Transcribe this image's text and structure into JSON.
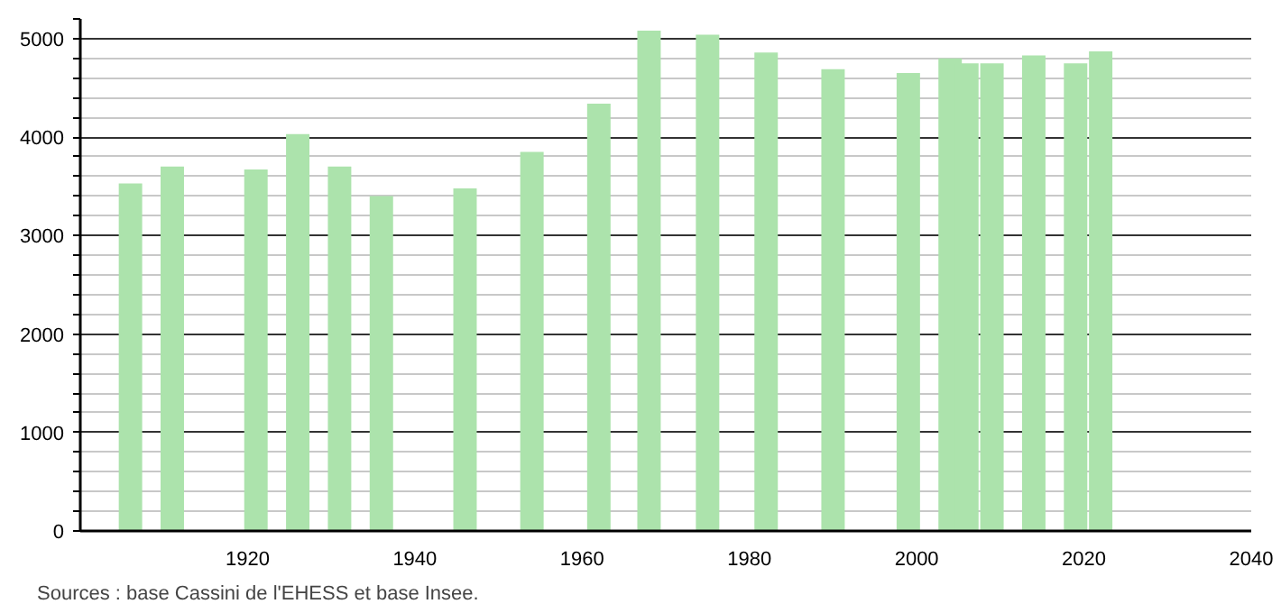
{
  "chart_data": {
    "type": "bar",
    "x": [
      1906,
      1911,
      1921,
      1926,
      1931,
      1936,
      1946,
      1954,
      1962,
      1968,
      1975,
      1982,
      1990,
      1999,
      2004,
      2006,
      2009,
      2014,
      2019,
      2022
    ],
    "values": [
      3530,
      3700,
      3670,
      4030,
      3700,
      3400,
      3480,
      3850,
      4340,
      5080,
      5040,
      4860,
      4690,
      4650,
      4800,
      4750,
      4750,
      4830,
      4750,
      4870
    ],
    "color": "#ace3ac",
    "xlim": [
      1900,
      2040
    ],
    "xticks": [
      1920,
      1940,
      1960,
      1980,
      2000,
      2020,
      2040
    ],
    "ylim": [
      0,
      5200
    ],
    "yticks": [
      0,
      {
        "value": 200,
        "label": null
      },
      {
        "value": 400,
        "label": null
      },
      {
        "value": 600,
        "label": null
      },
      {
        "value": 800,
        "label": null
      },
      1000,
      {
        "value": 1200,
        "label": null
      },
      {
        "value": 1400,
        "label": null
      },
      {
        "value": 1600,
        "label": null
      },
      {
        "value": 1800,
        "label": null
      },
      2000,
      {
        "value": 2200,
        "label": null
      },
      {
        "value": 2400,
        "label": null
      },
      {
        "value": 2600,
        "label": null
      },
      {
        "value": 2800,
        "label": null
      },
      3000,
      {
        "value": 3200,
        "label": null
      },
      {
        "value": 3400,
        "label": null
      },
      {
        "value": 3600,
        "label": null
      },
      {
        "value": 3800,
        "label": null
      },
      4000,
      {
        "value": 4200,
        "label": null
      },
      {
        "value": 4400,
        "label": null
      },
      {
        "value": 4600,
        "label": null
      },
      {
        "value": 4800,
        "label": null
      },
      5000,
      {
        "value": 5200,
        "label": null
      }
    ],
    "grid": "y",
    "annotations": [
      "Sources : base Cassini de l'EHESS et base Insee."
    ]
  }
}
